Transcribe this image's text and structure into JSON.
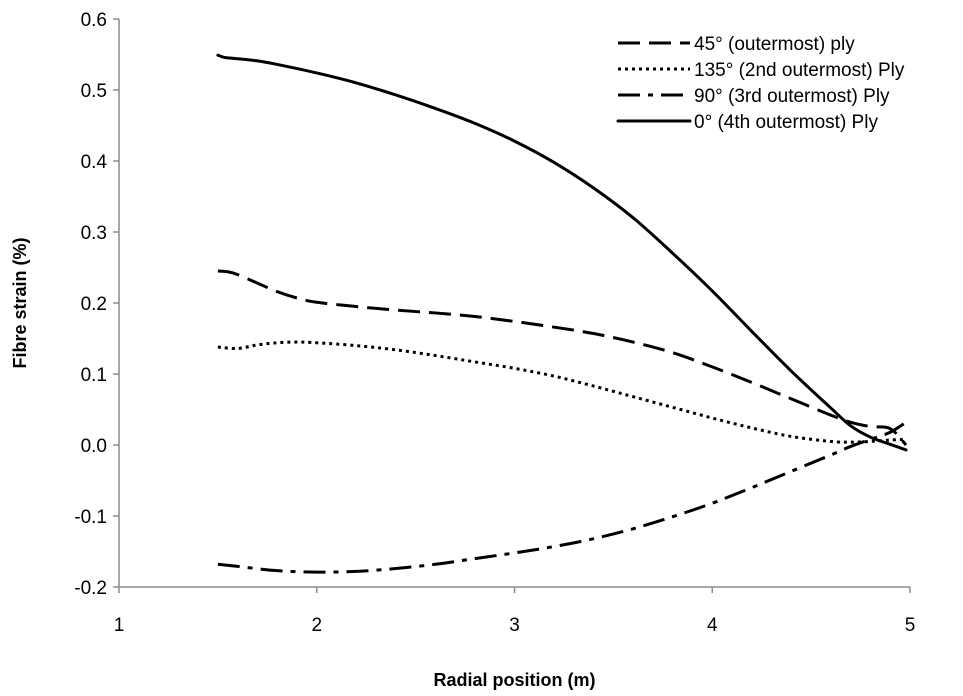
{
  "chart_data": {
    "type": "line",
    "title": "",
    "xlabel": "Radial position (m)",
    "ylabel": "Fibre strain (%)",
    "xlim": [
      1,
      5
    ],
    "ylim": [
      -0.2,
      0.6
    ],
    "x_ticks": [
      "1",
      "2",
      "3",
      "4",
      "5"
    ],
    "y_ticks": [
      "-0.2",
      "-0.1",
      "0.0",
      "0.1",
      "0.2",
      "0.3",
      "0.4",
      "0.5",
      "0.6"
    ],
    "x_tick_values": [
      1,
      2,
      3,
      4,
      5
    ],
    "y_tick_values": [
      -0.2,
      -0.1,
      0.0,
      0.1,
      0.2,
      0.3,
      0.4,
      0.5,
      0.6
    ],
    "grid": false,
    "legend_position": "top-right",
    "line_color": "#000000",
    "series": [
      {
        "name": "45° (outermost) ply",
        "style": "dashed",
        "x": [
          1.5,
          1.55,
          1.6,
          1.7,
          1.8,
          1.9,
          2.0,
          2.2,
          2.4,
          2.6,
          2.8,
          3.0,
          3.2,
          3.4,
          3.6,
          3.8,
          4.0,
          4.2,
          4.4,
          4.6,
          4.7,
          4.8,
          4.9,
          4.98
        ],
        "values": [
          0.245,
          0.244,
          0.24,
          0.228,
          0.216,
          0.207,
          0.201,
          0.195,
          0.19,
          0.186,
          0.181,
          0.174,
          0.166,
          0.157,
          0.145,
          0.13,
          0.11,
          0.088,
          0.065,
          0.042,
          0.032,
          0.026,
          0.023,
          0.0
        ]
      },
      {
        "name": "135° (2nd outermost) Ply",
        "style": "dotted",
        "x": [
          1.5,
          1.6,
          1.7,
          1.8,
          1.9,
          2.0,
          2.2,
          2.4,
          2.6,
          2.8,
          3.0,
          3.2,
          3.4,
          3.6,
          3.8,
          4.0,
          4.2,
          4.4,
          4.6,
          4.7,
          4.8,
          4.9,
          4.98
        ],
        "values": [
          0.138,
          0.136,
          0.141,
          0.144,
          0.145,
          0.144,
          0.14,
          0.134,
          0.126,
          0.117,
          0.108,
          0.097,
          0.083,
          0.068,
          0.053,
          0.038,
          0.024,
          0.012,
          0.005,
          0.004,
          0.005,
          0.007,
          0.008
        ]
      },
      {
        "name": "90° (3rd outermost) Ply",
        "style": "dash-dot",
        "x": [
          1.5,
          1.6,
          1.8,
          2.0,
          2.2,
          2.4,
          2.6,
          2.8,
          3.0,
          3.2,
          3.4,
          3.6,
          3.8,
          4.0,
          4.2,
          4.4,
          4.6,
          4.7,
          4.8,
          4.9,
          4.98
        ],
        "values": [
          -0.168,
          -0.171,
          -0.177,
          -0.179,
          -0.178,
          -0.174,
          -0.168,
          -0.16,
          -0.152,
          -0.143,
          -0.132,
          -0.118,
          -0.101,
          -0.082,
          -0.06,
          -0.037,
          -0.014,
          -0.002,
          0.008,
          0.018,
          0.032
        ]
      },
      {
        "name": "0° (4th outermost) Ply",
        "style": "solid",
        "x": [
          1.5,
          1.53,
          1.56,
          1.6,
          1.7,
          1.8,
          2.0,
          2.2,
          2.4,
          2.6,
          2.8,
          3.0,
          3.2,
          3.4,
          3.6,
          3.8,
          4.0,
          4.2,
          4.4,
          4.6,
          4.7,
          4.8,
          4.9,
          4.98
        ],
        "values": [
          0.549,
          0.546,
          0.545,
          0.544,
          0.541,
          0.536,
          0.524,
          0.51,
          0.493,
          0.474,
          0.453,
          0.428,
          0.398,
          0.362,
          0.32,
          0.27,
          0.217,
          0.16,
          0.104,
          0.052,
          0.027,
          0.011,
          0.001,
          -0.007
        ]
      }
    ]
  }
}
